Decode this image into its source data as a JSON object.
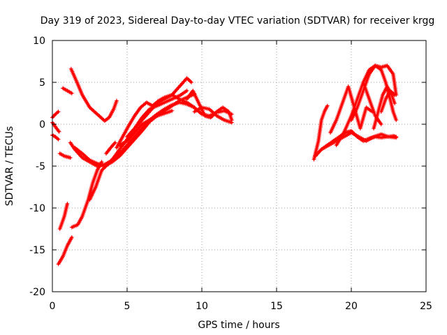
{
  "chart_data": {
    "type": "scatter",
    "title": "Day 319 of 2023, Sidereal Day-to-day VTEC variation (SDTVAR) for receiver krgg",
    "xlabel": "GPS time / hours",
    "ylabel": "SDTVAR / TECUs",
    "xlim": [
      0,
      25
    ],
    "ylim": [
      -20,
      10
    ],
    "xticks": [
      0,
      5,
      10,
      15,
      20,
      25
    ],
    "yticks": [
      -20,
      -15,
      -10,
      -5,
      0,
      5,
      10
    ],
    "xtick_labels": [
      "0",
      "5",
      "10",
      "15",
      "20",
      "25"
    ],
    "ytick_labels": [
      "-20",
      "-15",
      "-10",
      "-5",
      "0",
      "5",
      "10"
    ],
    "grid": true,
    "legend": "none",
    "marker": "+",
    "color": "#ff0000",
    "series": [
      {
        "x": [
          0.0,
          0.2,
          0.4
        ],
        "y": [
          0.8,
          1.2,
          1.5
        ]
      },
      {
        "x": [
          0.0,
          0.2,
          0.4
        ],
        "y": [
          -1.3,
          -1.5,
          -1.8
        ]
      },
      {
        "x": [
          0.0,
          0.2,
          0.45
        ],
        "y": [
          0.2,
          -0.3,
          -0.9
        ]
      },
      {
        "x": [
          0.5,
          0.8,
          1.2
        ],
        "y": [
          -3.5,
          -3.8,
          -4.0
        ]
      },
      {
        "x": [
          0.7,
          1.0,
          1.3
        ],
        "y": [
          4.3,
          4.0,
          3.7
        ]
      },
      {
        "x": [
          1.25,
          1.6,
          2.0,
          2.5,
          3.0,
          3.5,
          3.8,
          4.1,
          4.3
        ],
        "y": [
          6.6,
          5.2,
          3.5,
          2.0,
          1.2,
          0.4,
          0.8,
          1.8,
          2.8
        ]
      },
      {
        "x": [
          0.5,
          0.8,
          1.0
        ],
        "y": [
          -12.5,
          -11.0,
          -9.5
        ]
      },
      {
        "x": [
          0.4,
          0.7,
          1.0,
          1.3
        ],
        "y": [
          -16.7,
          -15.8,
          -14.5,
          -13.5
        ]
      },
      {
        "x": [
          1.3,
          1.7,
          2.0,
          2.4,
          2.7,
          3.0,
          3.3
        ],
        "y": [
          -12.3,
          -12.0,
          -11.0,
          -9.0,
          -7.0,
          -5.5,
          -4.5
        ]
      },
      {
        "x": [
          1.2,
          1.5,
          2.0,
          2.5,
          3.0,
          3.5,
          4.0,
          4.5,
          5.0,
          5.5,
          6.0,
          6.5,
          7.0,
          7.5,
          8.0,
          8.5,
          9.0,
          9.5
        ],
        "y": [
          -2.2,
          -3.0,
          -4.0,
          -4.5,
          -5.0,
          -4.8,
          -4.3,
          -3.5,
          -2.5,
          -1.5,
          -0.5,
          0.5,
          1.2,
          1.8,
          2.3,
          2.6,
          2.4,
          2.0
        ]
      },
      {
        "x": [
          1.5,
          2.0,
          2.5,
          3.0,
          3.5,
          4.0,
          4.5,
          5.0,
          5.5,
          6.0,
          6.5,
          7.0,
          7.5,
          8.0,
          8.5,
          9.0,
          9.5
        ],
        "y": [
          -2.8,
          -3.5,
          -4.3,
          -4.7,
          -5.0,
          -4.5,
          -3.8,
          -2.8,
          -1.8,
          -0.8,
          0.3,
          1.0,
          1.6,
          2.2,
          2.8,
          3.2,
          3.6
        ]
      },
      {
        "x": [
          2.5,
          2.9,
          3.3,
          3.7,
          4.1,
          4.5,
          5.0,
          5.5,
          6.0,
          6.5,
          7.0,
          7.5,
          8.0,
          8.5,
          9.0
        ],
        "y": [
          -9.0,
          -7.5,
          -5.5,
          -4.8,
          -4.0,
          -3.0,
          -1.8,
          -0.5,
          0.8,
          1.8,
          2.2,
          2.6,
          3.0,
          3.4,
          4.0
        ]
      },
      {
        "x": [
          3.6,
          3.9,
          4.2
        ],
        "y": [
          -3.5,
          -2.8,
          -2.2
        ]
      },
      {
        "x": [
          4.3,
          4.7,
          5.1,
          5.5,
          5.9,
          6.3,
          6.7,
          7.1,
          7.5,
          8.0,
          8.5,
          9.0,
          9.5,
          10.0,
          10.5,
          11.0,
          11.5,
          12.0
        ],
        "y": [
          -2.8,
          -1.5,
          -0.2,
          1.0,
          2.0,
          2.6,
          2.2,
          2.8,
          3.2,
          3.5,
          3.0,
          2.6,
          2.0,
          1.2,
          1.0,
          1.4,
          1.6,
          1.2
        ]
      },
      {
        "x": [
          5.0,
          5.5,
          6.0,
          6.5,
          7.0,
          7.5,
          8.0,
          8.5,
          9.0,
          9.3
        ],
        "y": [
          -1.5,
          -0.5,
          0.5,
          1.5,
          2.5,
          3.0,
          3.5,
          4.5,
          5.5,
          5.0
        ]
      },
      {
        "x": [
          4.5,
          5.0,
          5.5,
          6.0,
          6.5,
          7.0,
          7.5,
          8.0
        ],
        "y": [
          -2.5,
          -2.0,
          -1.0,
          0.0,
          0.5,
          1.0,
          1.3,
          1.6
        ]
      },
      {
        "x": [
          9.0,
          9.4,
          9.8,
          10.2,
          10.6,
          11.0,
          11.4,
          11.8,
          12.0
        ],
        "y": [
          3.0,
          4.0,
          2.5,
          1.0,
          0.8,
          1.5,
          2.0,
          1.5,
          0.5
        ]
      },
      {
        "x": [
          9.5,
          10.0,
          10.5,
          11.0,
          11.5,
          12.0
        ],
        "y": [
          1.5,
          2.0,
          1.8,
          1.0,
          0.5,
          0.2
        ]
      },
      {
        "x": [
          17.5,
          17.8,
          18.0,
          18.2,
          18.4
        ],
        "y": [
          -4.2,
          -2.0,
          0.5,
          1.5,
          2.2
        ]
      },
      {
        "x": [
          17.6,
          18.0,
          18.4,
          18.8,
          19.2,
          19.6,
          20.0,
          20.4,
          20.8,
          21.2,
          21.6,
          22.0,
          22.4,
          22.8,
          23.0
        ],
        "y": [
          -3.8,
          -3.0,
          -2.5,
          -2.0,
          -1.5,
          -1.0,
          -0.8,
          -1.5,
          -2.0,
          -1.7,
          -1.5,
          -1.6,
          -1.5,
          -1.4,
          -1.5
        ]
      },
      {
        "x": [
          18.0,
          18.5,
          19.0,
          19.5,
          20.0,
          20.5,
          21.0,
          21.5,
          22.0,
          22.5,
          23.0
        ],
        "y": [
          -3.0,
          -2.5,
          -2.0,
          -1.5,
          -1.0,
          -1.5,
          -2.0,
          -1.5,
          -1.2,
          -1.5,
          -1.6
        ]
      },
      {
        "x": [
          18.6,
          19.0,
          19.4,
          19.8,
          20.2,
          20.6,
          21.0,
          21.4
        ],
        "y": [
          -1.0,
          0.5,
          2.5,
          4.5,
          2.0,
          -0.5,
          2.0,
          1.5
        ]
      },
      {
        "x": [
          19.0,
          19.5,
          20.0,
          20.4,
          20.8,
          21.2,
          21.6,
          22.0
        ],
        "y": [
          -2.5,
          -1.0,
          1.0,
          3.0,
          5.0,
          3.0,
          1.0,
          0.0
        ]
      },
      {
        "x": [
          20.0,
          20.4,
          20.8,
          21.2,
          21.6,
          22.0,
          22.4,
          22.8,
          23.0
        ],
        "y": [
          0.5,
          2.0,
          4.0,
          6.0,
          7.0,
          6.8,
          7.0,
          6.0,
          3.5
        ]
      },
      {
        "x": [
          20.8,
          21.2,
          21.6,
          22.0,
          22.3,
          22.6,
          22.8,
          23.0
        ],
        "y": [
          5.0,
          6.5,
          7.0,
          6.5,
          5.0,
          3.0,
          1.5,
          0.5
        ]
      },
      {
        "x": [
          21.5,
          21.8,
          22.1,
          22.4,
          22.7,
          22.9
        ],
        "y": [
          -0.5,
          1.5,
          3.5,
          4.5,
          3.5,
          2.5
        ]
      },
      {
        "x": [
          22.0,
          22.3,
          22.6,
          22.9
        ],
        "y": [
          1.5,
          3.0,
          4.0,
          3.5
        ]
      }
    ]
  }
}
